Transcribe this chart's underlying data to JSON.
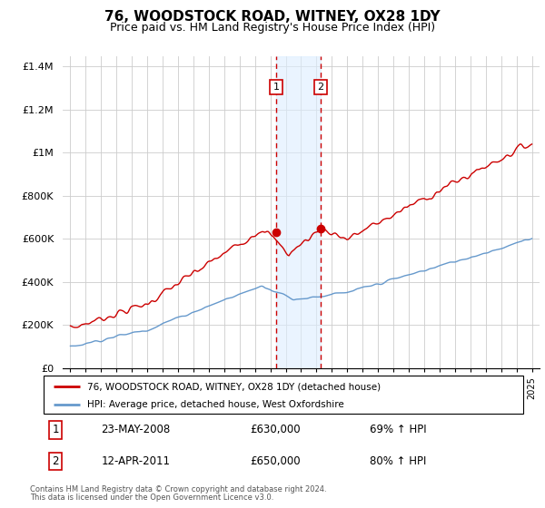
{
  "title": "76, WOODSTOCK ROAD, WITNEY, OX28 1DY",
  "subtitle": "Price paid vs. HM Land Registry's House Price Index (HPI)",
  "title_fontsize": 11,
  "subtitle_fontsize": 9,
  "red_line_color": "#cc0000",
  "blue_line_color": "#6699cc",
  "transaction1": {
    "date_num": 2008.39,
    "price": 630000,
    "label": "1",
    "date_str": "23-MAY-2008",
    "pct": "69% ↑ HPI"
  },
  "transaction2": {
    "date_num": 2011.28,
    "price": 650000,
    "label": "2",
    "date_str": "12-APR-2011",
    "pct": "80% ↑ HPI"
  },
  "shade_color": "#ddeeff",
  "shade_alpha": 0.6,
  "ylim": [
    0,
    1450000
  ],
  "xlim": [
    1994.5,
    2025.5
  ],
  "yticks": [
    0,
    200000,
    400000,
    600000,
    800000,
    1000000,
    1200000,
    1400000
  ],
  "ytick_labels": [
    "£0",
    "£200K",
    "£400K",
    "£600K",
    "£800K",
    "£1M",
    "£1.2M",
    "£1.4M"
  ],
  "legend_line1": "76, WOODSTOCK ROAD, WITNEY, OX28 1DY (detached house)",
  "legend_line2": "HPI: Average price, detached house, West Oxfordshire",
  "footer1": "Contains HM Land Registry data © Crown copyright and database right 2024.",
  "footer2": "This data is licensed under the Open Government Licence v3.0."
}
